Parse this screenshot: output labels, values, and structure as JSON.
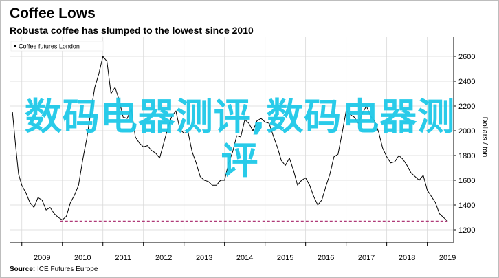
{
  "header": {
    "title": "Coffee Lows",
    "subtitle": "Robusta coffee has slumped to the lowest since 2010"
  },
  "footer": {
    "source_label": "Source:",
    "source_text": "ICE Futures Europe"
  },
  "watermark": {
    "text": "数码电器测评,数码电器测评"
  },
  "colors": {
    "line": "#000000",
    "grid": "#d9d9d9",
    "reference_line": "#b03a78",
    "watermark": "#1ec9e8"
  },
  "chart_data": {
    "type": "line",
    "legend_position": "top-left",
    "ylabel": "Dollars / ton",
    "ylim": [
      1200,
      2700
    ],
    "yticks": [
      1200,
      1400,
      1600,
      1800,
      2000,
      2200,
      2400,
      2600
    ],
    "xlim": [
      2008.75,
      2019.6
    ],
    "xticks": [
      2009,
      2010,
      2011,
      2012,
      2013,
      2014,
      2015,
      2016,
      2017,
      2018,
      2019
    ],
    "grid": true,
    "reference_line": {
      "y": 1270,
      "x_start": 2009.95,
      "x_end": 2019.5,
      "style": "dashed"
    },
    "series": [
      {
        "name": "Coffee futures London",
        "x": [
          2008.77,
          2008.85,
          2008.92,
          2009.0,
          2009.1,
          2009.2,
          2009.3,
          2009.4,
          2009.5,
          2009.6,
          2009.7,
          2009.8,
          2009.9,
          2010.0,
          2010.1,
          2010.2,
          2010.3,
          2010.4,
          2010.5,
          2010.55,
          2010.6,
          2010.7,
          2010.8,
          2010.9,
          2011.0,
          2011.1,
          2011.2,
          2011.3,
          2011.4,
          2011.5,
          2011.6,
          2011.7,
          2011.8,
          2011.9,
          2012.0,
          2012.1,
          2012.2,
          2012.3,
          2012.4,
          2012.5,
          2012.6,
          2012.7,
          2012.8,
          2012.9,
          2013.0,
          2013.1,
          2013.2,
          2013.3,
          2013.4,
          2013.5,
          2013.6,
          2013.7,
          2013.8,
          2013.9,
          2014.0,
          2014.1,
          2014.2,
          2014.3,
          2014.4,
          2014.5,
          2014.6,
          2014.7,
          2014.8,
          2014.9,
          2015.0,
          2015.1,
          2015.2,
          2015.3,
          2015.4,
          2015.5,
          2015.6,
          2015.7,
          2015.8,
          2015.9,
          2016.0,
          2016.1,
          2016.2,
          2016.3,
          2016.4,
          2016.5,
          2016.6,
          2016.7,
          2016.8,
          2016.9,
          2017.0,
          2017.1,
          2017.2,
          2017.3,
          2017.4,
          2017.5,
          2017.6,
          2017.7,
          2017.8,
          2017.9,
          2018.0,
          2018.1,
          2018.2,
          2018.3,
          2018.4,
          2018.5,
          2018.6,
          2018.7,
          2018.8,
          2018.9,
          2019.0,
          2019.1,
          2019.2,
          2019.3,
          2019.4,
          2019.5
        ],
        "values": [
          2150,
          1870,
          1650,
          1560,
          1500,
          1420,
          1380,
          1460,
          1440,
          1360,
          1380,
          1330,
          1300,
          1280,
          1310,
          1420,
          1480,
          1560,
          1760,
          1850,
          1930,
          2150,
          2350,
          2460,
          2600,
          2560,
          2300,
          2350,
          2250,
          2110,
          2100,
          2180,
          1950,
          1900,
          1870,
          1880,
          1840,
          1820,
          1780,
          1900,
          2020,
          2120,
          2160,
          2010,
          1980,
          1990,
          1830,
          1740,
          1630,
          1600,
          1590,
          1560,
          1560,
          1600,
          1600,
          1740,
          1830,
          1960,
          1950,
          2090,
          2060,
          2000,
          2080,
          2100,
          2070,
          2060,
          1960,
          1870,
          1760,
          1720,
          1780,
          1680,
          1560,
          1600,
          1620,
          1560,
          1470,
          1400,
          1440,
          1550,
          1650,
          1790,
          1810,
          1980,
          2160,
          2130,
          2110,
          2060,
          2140,
          2200,
          2120,
          2080,
          1990,
          1860,
          1790,
          1740,
          1750,
          1800,
          1770,
          1720,
          1660,
          1630,
          1600,
          1640,
          1520,
          1470,
          1420,
          1330,
          1300,
          1270
        ]
      }
    ]
  }
}
